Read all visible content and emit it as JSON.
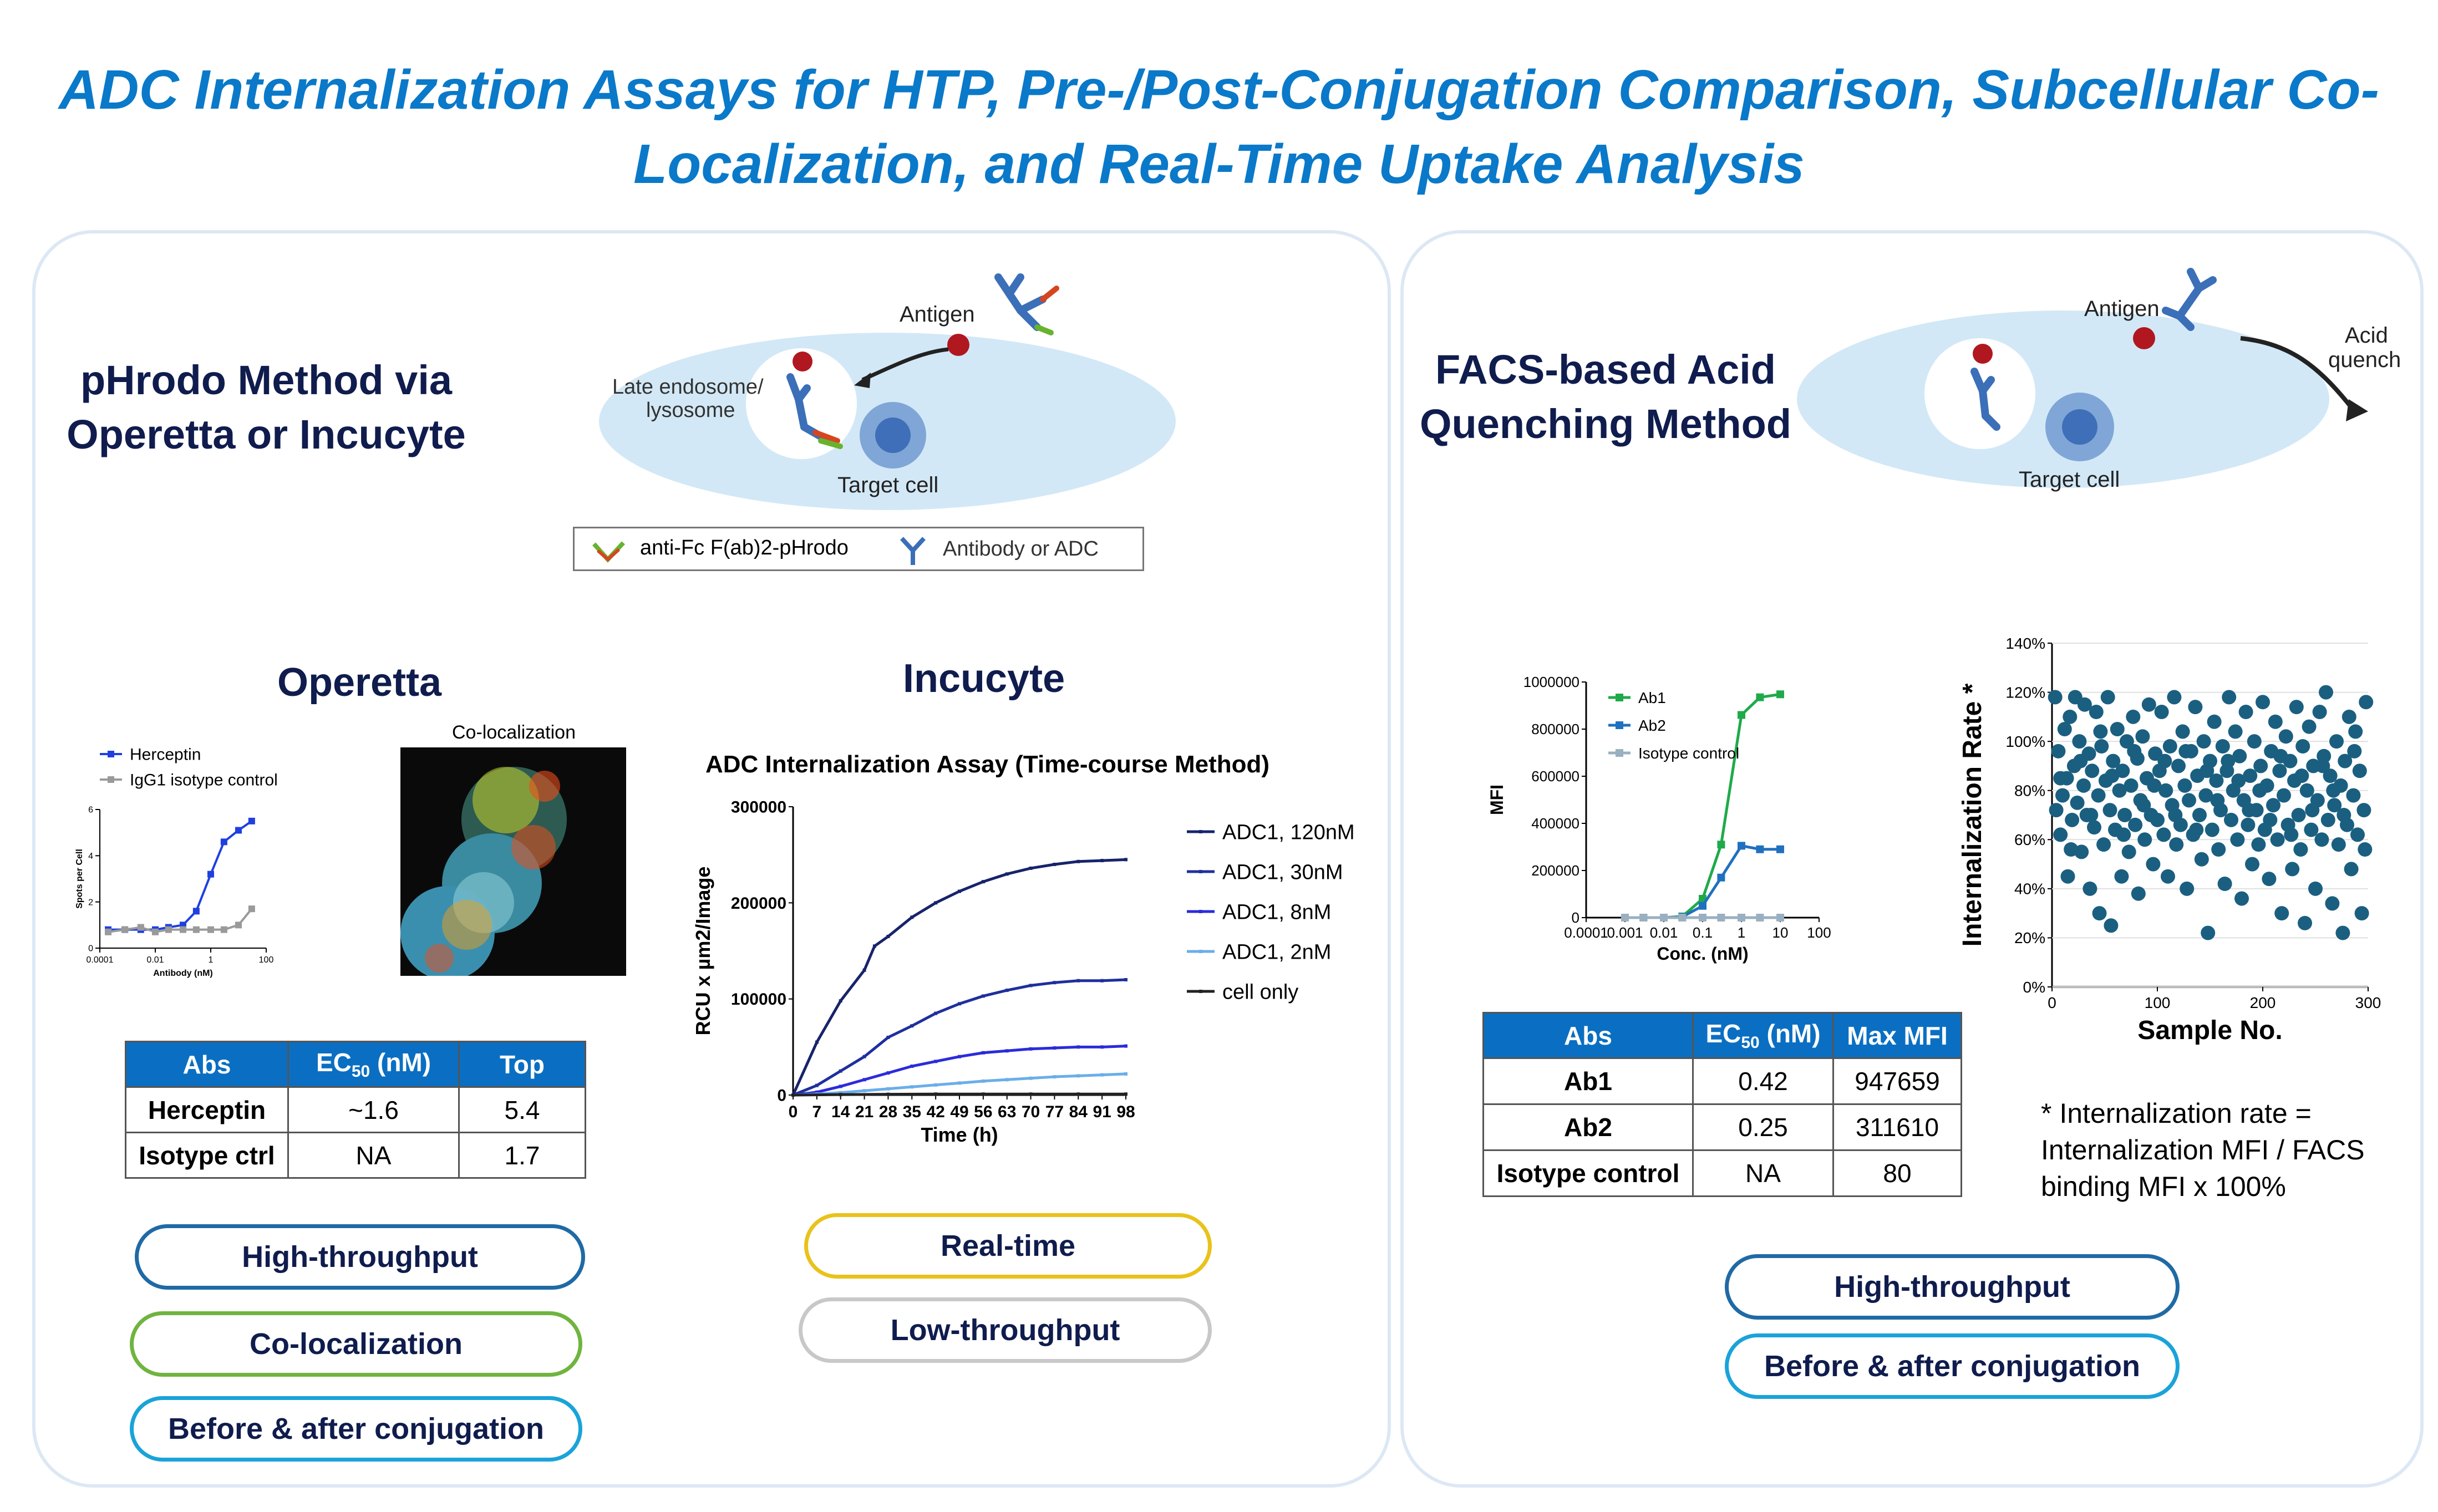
{
  "title": {
    "line1": "ADC Internalization Assays for HTP, Pre-/Post-Conjugation Comparison, Subcellular Co-",
    "line2": "Localization, and Real-Time Uptake Analysis"
  },
  "left_panel": {
    "method_line1": "pHrodo Method via",
    "method_line2": "Operetta or Incucyte",
    "schematic": {
      "antigen": "Antigen",
      "endosome_line1": "Late endosome/",
      "endosome_line2": "lysosome",
      "target_cell": "Target cell",
      "legend_reagent": "anti-Fc F(ab)2-pHrodo",
      "legend_antibody": "Antibody or ADC",
      "icons": [
        "phrodo-reagent-icon",
        "antibody-icon",
        "antigen-dot-icon",
        "arrow-icon",
        "cell-nucleus-icon"
      ]
    },
    "operetta": {
      "heading": "Operetta",
      "coloc_label": "Co-localization",
      "table": {
        "headers": [
          "Abs",
          "EC",
          "50",
          " (nM)",
          "Top"
        ],
        "rows": [
          [
            "Herceptin",
            "~1.6",
            "5.4"
          ],
          [
            "Isotype ctrl",
            "NA",
            "1.7"
          ]
        ]
      },
      "pills": [
        "High-throughput",
        "Co-localization",
        "Before & after conjugation"
      ]
    },
    "incucyte": {
      "heading": "Incucyte",
      "pills": [
        "Real-time",
        "Low-throughput"
      ]
    }
  },
  "right_panel": {
    "method_line1": "FACS-based Acid",
    "method_line2": "Quenching Method",
    "schematic": {
      "antigen": "Antigen",
      "quench_line1": "Acid",
      "quench_line2": "quench",
      "target_cell": "Target cell"
    },
    "table": {
      "headers": [
        "Abs",
        "EC",
        "50",
        " (nM)",
        "Max MFI"
      ],
      "rows": [
        [
          "Ab1",
          "0.42",
          "947659"
        ],
        [
          "Ab2",
          "0.25",
          "311610"
        ],
        [
          "Isotype control",
          "NA",
          "80"
        ]
      ]
    },
    "note": [
      "* Internalization rate =",
      "Internalization MFI / FACS",
      "binding MFI x 100%"
    ],
    "pills": [
      "High-throughput",
      "Before & after conjugation"
    ]
  },
  "colors": {
    "title": "#0a79c9",
    "heading": "#0f1c4d",
    "pill_blue_dark": "#1f6aa5",
    "pill_green": "#6fb43f",
    "pill_cyan": "#1aa3d9",
    "pill_yellow": "#e9c21b",
    "pill_gray": "#c8c8c8",
    "table_header": "#0a6fc2"
  },
  "chart_data": [
    {
      "id": "operetta-dose-response",
      "type": "line",
      "xscale": "log",
      "xlabel": "Antibody (nM)",
      "ylabel": "Spots per Cell",
      "xticks": [
        "0.0001",
        "0.01",
        "1",
        "100"
      ],
      "yticks": [
        "0",
        "2",
        "4",
        "6"
      ],
      "xlim": [
        0.0001,
        100
      ],
      "ylim": [
        0,
        6
      ],
      "series": [
        {
          "name": "Herceptin",
          "color": "#1f3fe0",
          "x": [
            0.0002,
            0.0008,
            0.003,
            0.01,
            0.03,
            0.1,
            0.3,
            1,
            3,
            10,
            30
          ],
          "y": [
            0.8,
            0.8,
            0.8,
            0.8,
            0.9,
            1.0,
            1.6,
            3.2,
            4.6,
            5.1,
            5.5
          ]
        },
        {
          "name": "IgG1 isotype control",
          "color": "#9a9a9a",
          "x": [
            0.0002,
            0.0008,
            0.003,
            0.01,
            0.03,
            0.1,
            0.3,
            1,
            3,
            10,
            30
          ],
          "y": [
            0.7,
            0.8,
            0.9,
            0.7,
            0.8,
            0.8,
            0.8,
            0.8,
            0.8,
            1.0,
            1.7
          ]
        }
      ]
    },
    {
      "id": "incucyte-time-course",
      "type": "line",
      "title": "ADC Internalization Assay (Time-course Method)",
      "xlabel": "Time (h)",
      "ylabel": "RCU x µm2/Image",
      "xticks": [
        "0",
        "7",
        "14",
        "21",
        "28",
        "35",
        "42",
        "49",
        "56",
        "63",
        "70",
        "77",
        "84",
        "91",
        "98"
      ],
      "yticks": [
        "0",
        "100000",
        "200000",
        "300000"
      ],
      "xlim": [
        0,
        98
      ],
      "ylim": [
        0,
        300000
      ],
      "series": [
        {
          "name": "ADC1, 120nM",
          "color": "#17236b",
          "x": [
            0,
            7,
            14,
            21,
            24,
            28,
            35,
            42,
            49,
            56,
            63,
            70,
            77,
            84,
            91,
            98
          ],
          "y": [
            0,
            55000,
            98000,
            130000,
            155000,
            165000,
            185000,
            200000,
            212000,
            222000,
            230000,
            236000,
            240000,
            243000,
            244000,
            245000
          ]
        },
        {
          "name": "ADC1, 30nM",
          "color": "#1e2f9e",
          "x": [
            0,
            7,
            14,
            21,
            28,
            35,
            42,
            49,
            56,
            63,
            70,
            77,
            84,
            91,
            98
          ],
          "y": [
            0,
            10000,
            25000,
            40000,
            60000,
            72000,
            85000,
            95000,
            103000,
            109000,
            114000,
            117000,
            119000,
            119000,
            120000
          ]
        },
        {
          "name": "ADC1, 8nM",
          "color": "#2b2bdc",
          "x": [
            0,
            7,
            14,
            21,
            28,
            35,
            42,
            49,
            56,
            63,
            70,
            77,
            84,
            91,
            98
          ],
          "y": [
            0,
            3000,
            9000,
            16000,
            23000,
            30000,
            35000,
            40000,
            44000,
            46000,
            48000,
            49000,
            50000,
            50000,
            51000
          ]
        },
        {
          "name": "ADC1, 2nM",
          "color": "#6aaeea",
          "x": [
            0,
            7,
            14,
            21,
            28,
            35,
            42,
            49,
            56,
            63,
            70,
            77,
            84,
            91,
            98
          ],
          "y": [
            0,
            1000,
            2500,
            4500,
            6500,
            8500,
            10500,
            12500,
            14500,
            16000,
            17500,
            19000,
            20000,
            21000,
            22000
          ]
        },
        {
          "name": "cell only",
          "color": "#222222",
          "x": [
            0,
            14,
            28,
            42,
            56,
            70,
            84,
            98
          ],
          "y": [
            0,
            500,
            800,
            1000,
            1000,
            1000,
            1000,
            1000
          ]
        }
      ]
    },
    {
      "id": "facs-binding",
      "type": "line",
      "xscale": "log",
      "xlabel": "Conc. (nM)",
      "ylabel": "MFI",
      "xticks": [
        "0.0001",
        "0.001",
        "0.01",
        "0.1",
        "1",
        "10",
        "100"
      ],
      "yticks": [
        "0",
        "200000",
        "400000",
        "600000",
        "800000",
        "1000000"
      ],
      "xlim": [
        0.0001,
        100
      ],
      "ylim": [
        0,
        1000000
      ],
      "series": [
        {
          "name": "Ab1",
          "color": "#1faa4a",
          "x": [
            0.001,
            0.003,
            0.01,
            0.03,
            0.1,
            0.3,
            1,
            3,
            10
          ],
          "y": [
            0,
            0,
            0,
            5000,
            80000,
            310000,
            860000,
            935000,
            947659
          ]
        },
        {
          "name": "Ab2",
          "color": "#2070c0",
          "x": [
            0.001,
            0.003,
            0.01,
            0.03,
            0.1,
            0.3,
            1,
            3,
            10
          ],
          "y": [
            0,
            0,
            0,
            3000,
            50000,
            170000,
            305000,
            290000,
            290000
          ]
        },
        {
          "name": "Isotype control",
          "color": "#9ab0c0",
          "x": [
            0.001,
            0.003,
            0.01,
            0.03,
            0.1,
            0.3,
            1,
            3,
            10
          ],
          "y": [
            0,
            0,
            0,
            0,
            0,
            0,
            0,
            0,
            0
          ]
        }
      ]
    },
    {
      "id": "internalization-rate-scatter",
      "type": "scatter",
      "xlabel": "Sample No.",
      "ylabel": "Internalization Rate *",
      "xticks": [
        "0",
        "100",
        "200",
        "300"
      ],
      "yticks": [
        "0%",
        "20%",
        "40%",
        "60%",
        "80%",
        "100%",
        "120%",
        "140%"
      ],
      "xlim": [
        0,
        300
      ],
      "ylim": [
        0,
        140
      ],
      "color": "#1b5f80",
      "points": [
        [
          3,
          118
        ],
        [
          4,
          72
        ],
        [
          6,
          96
        ],
        [
          8,
          62
        ],
        [
          10,
          78
        ],
        [
          12,
          105
        ],
        [
          14,
          85
        ],
        [
          15,
          45
        ],
        [
          17,
          110
        ],
        [
          19,
          68
        ],
        [
          21,
          90
        ],
        [
          22,
          118
        ],
        [
          24,
          75
        ],
        [
          26,
          100
        ],
        [
          28,
          55
        ],
        [
          30,
          82
        ],
        [
          31,
          115
        ],
        [
          33,
          70
        ],
        [
          35,
          95
        ],
        [
          36,
          40
        ],
        [
          38,
          88
        ],
        [
          40,
          65
        ],
        [
          42,
          112
        ],
        [
          44,
          78
        ],
        [
          45,
          30
        ],
        [
          47,
          98
        ],
        [
          49,
          58
        ],
        [
          51,
          84
        ],
        [
          53,
          118
        ],
        [
          55,
          72
        ],
        [
          56,
          25
        ],
        [
          58,
          92
        ],
        [
          60,
          64
        ],
        [
          62,
          105
        ],
        [
          64,
          80
        ],
        [
          66,
          45
        ],
        [
          67,
          88
        ],
        [
          69,
          70
        ],
        [
          71,
          100
        ],
        [
          73,
          55
        ],
        [
          75,
          82
        ],
        [
          77,
          110
        ],
        [
          79,
          66
        ],
        [
          81,
          93
        ],
        [
          82,
          38
        ],
        [
          84,
          76
        ],
        [
          86,
          102
        ],
        [
          88,
          60
        ],
        [
          90,
          85
        ],
        [
          92,
          115
        ],
        [
          94,
          70
        ],
        [
          96,
          50
        ],
        [
          98,
          95
        ],
        [
          100,
          68
        ],
        [
          102,
          88
        ],
        [
          104,
          112
        ],
        [
          106,
          62
        ],
        [
          108,
          80
        ],
        [
          110,
          45
        ],
        [
          112,
          98
        ],
        [
          114,
          74
        ],
        [
          116,
          118
        ],
        [
          118,
          58
        ],
        [
          120,
          90
        ],
        [
          122,
          66
        ],
        [
          124,
          104
        ],
        [
          126,
          82
        ],
        [
          128,
          40
        ],
        [
          130,
          76
        ],
        [
          132,
          96
        ],
        [
          134,
          62
        ],
        [
          136,
          114
        ],
        [
          138,
          86
        ],
        [
          140,
          70
        ],
        [
          142,
          52
        ],
        [
          144,
          100
        ],
        [
          146,
          78
        ],
        [
          148,
          22
        ],
        [
          150,
          92
        ],
        [
          152,
          64
        ],
        [
          154,
          108
        ],
        [
          156,
          84
        ],
        [
          158,
          56
        ],
        [
          160,
          72
        ],
        [
          162,
          98
        ],
        [
          164,
          42
        ],
        [
          166,
          88
        ],
        [
          168,
          118
        ],
        [
          170,
          68
        ],
        [
          172,
          80
        ],
        [
          174,
          104
        ],
        [
          176,
          60
        ],
        [
          178,
          94
        ],
        [
          180,
          36
        ],
        [
          182,
          76
        ],
        [
          184,
          112
        ],
        [
          186,
          66
        ],
        [
          188,
          86
        ],
        [
          190,
          50
        ],
        [
          192,
          100
        ],
        [
          194,
          72
        ],
        [
          196,
          58
        ],
        [
          198,
          90
        ],
        [
          200,
          116
        ],
        [
          202,
          64
        ],
        [
          204,
          82
        ],
        [
          206,
          44
        ],
        [
          208,
          96
        ],
        [
          210,
          74
        ],
        [
          212,
          108
        ],
        [
          214,
          60
        ],
        [
          216,
          88
        ],
        [
          218,
          30
        ],
        [
          220,
          78
        ],
        [
          222,
          102
        ],
        [
          224,
          66
        ],
        [
          226,
          92
        ],
        [
          228,
          48
        ],
        [
          230,
          84
        ],
        [
          232,
          114
        ],
        [
          234,
          70
        ],
        [
          236,
          56
        ],
        [
          238,
          98
        ],
        [
          240,
          26
        ],
        [
          242,
          80
        ],
        [
          244,
          106
        ],
        [
          246,
          64
        ],
        [
          248,
          90
        ],
        [
          250,
          40
        ],
        [
          252,
          76
        ],
        [
          254,
          112
        ],
        [
          256,
          60
        ],
        [
          258,
          94
        ],
        [
          260,
          120
        ],
        [
          262,
          68
        ],
        [
          264,
          86
        ],
        [
          266,
          34
        ],
        [
          268,
          74
        ],
        [
          270,
          100
        ],
        [
          272,
          58
        ],
        [
          274,
          82
        ],
        [
          276,
          22
        ],
        [
          278,
          92
        ],
        [
          280,
          66
        ],
        [
          282,
          110
        ],
        [
          284,
          48
        ],
        [
          286,
          78
        ],
        [
          288,
          104
        ],
        [
          290,
          62
        ],
        [
          292,
          88
        ],
        [
          294,
          30
        ],
        [
          296,
          72
        ],
        [
          298,
          116
        ],
        [
          8,
          85
        ],
        [
          18,
          56
        ],
        [
          27,
          92
        ],
        [
          37,
          70
        ],
        [
          46,
          104
        ],
        [
          57,
          86
        ],
        [
          68,
          62
        ],
        [
          78,
          96
        ],
        [
          87,
          74
        ],
        [
          97,
          82
        ],
        [
          107,
          92
        ],
        [
          117,
          70
        ],
        [
          127,
          96
        ],
        [
          137,
          64
        ],
        [
          147,
          88
        ],
        [
          157,
          76
        ],
        [
          167,
          92
        ],
        [
          177,
          84
        ],
        [
          187,
          72
        ],
        [
          197,
          80
        ],
        [
          207,
          68
        ],
        [
          217,
          94
        ],
        [
          227,
          62
        ],
        [
          237,
          86
        ],
        [
          247,
          72
        ],
        [
          257,
          90
        ],
        [
          267,
          80
        ],
        [
          277,
          70
        ],
        [
          287,
          96
        ],
        [
          297,
          56
        ]
      ]
    }
  ]
}
